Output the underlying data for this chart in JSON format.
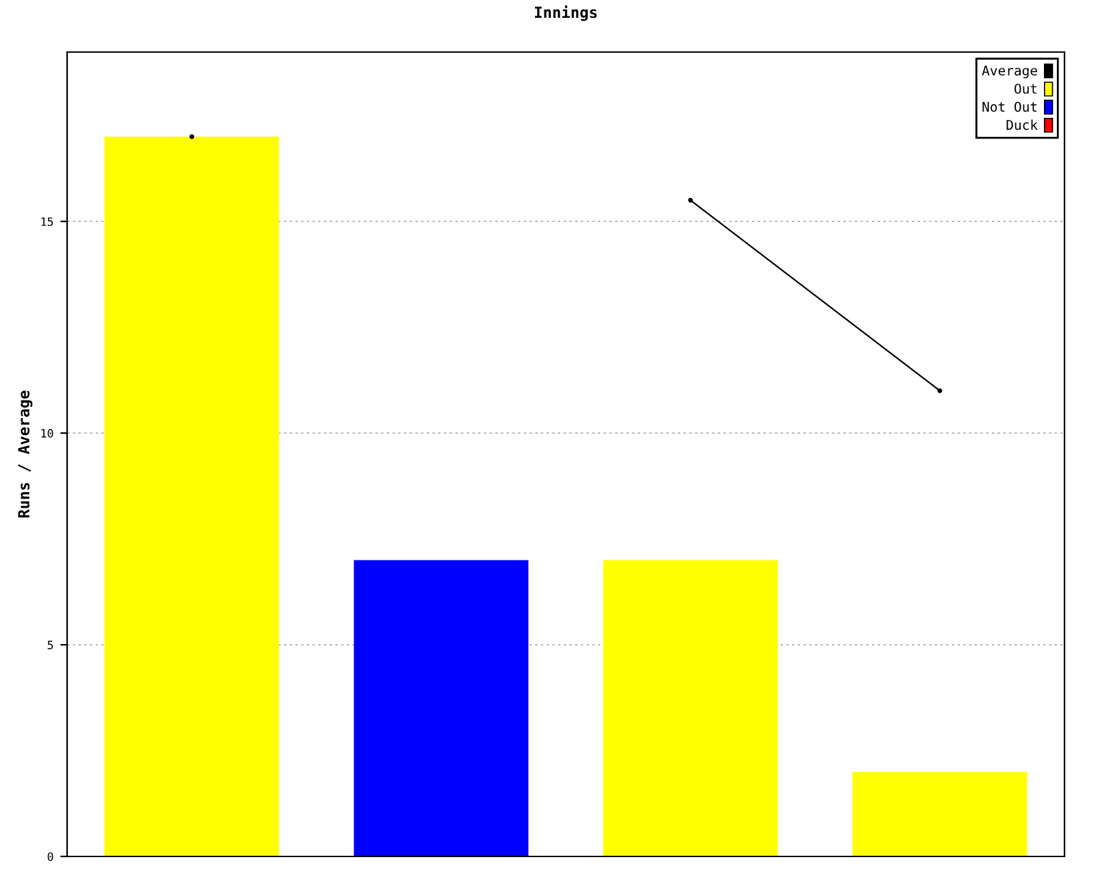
{
  "chart_data": {
    "type": "bar",
    "title": "Innings",
    "ylabel": "Runs / Average",
    "categories": [
      null,
      null,
      null,
      null
    ],
    "series": [
      {
        "name": "Average",
        "type": "line",
        "color": "#000000",
        "marker": "circle",
        "values": [
          17,
          null,
          15.5,
          11
        ]
      },
      {
        "name": "Out",
        "color": "#ffff00",
        "values": [
          17,
          null,
          7,
          2
        ]
      },
      {
        "name": "Not Out",
        "color": "#0000ff",
        "values": [
          null,
          7,
          null,
          null
        ]
      },
      {
        "name": "Duck",
        "color": "#ff0000",
        "values": [
          null,
          null,
          null,
          null
        ]
      }
    ],
    "ylim": [
      0,
      19
    ],
    "yticks": [
      0,
      5,
      10,
      15
    ],
    "grid": "y",
    "legend": "top right"
  }
}
